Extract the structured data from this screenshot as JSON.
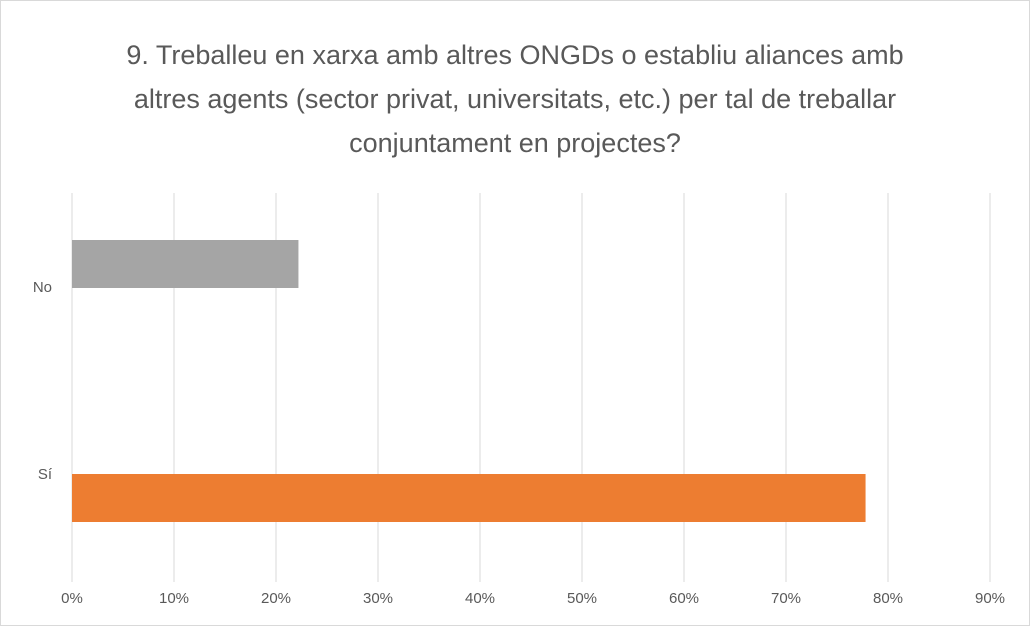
{
  "chart_data": {
    "type": "barh",
    "title": "9. Treballeu en xarxa amb altres ONGDs o establiu aliances amb altres agents (sector privat, universitats, etc.) per tal de treballar conjuntament en projectes?",
    "categories": [
      "No",
      "Sí"
    ],
    "values": [
      22.2,
      77.8
    ],
    "colors": [
      "#a5a5a5",
      "#ed7d31"
    ],
    "xlim": [
      0,
      90
    ],
    "xticks": [
      {
        "value": 0,
        "label": "0%"
      },
      {
        "value": 10,
        "label": "10%"
      },
      {
        "value": 20,
        "label": "20%"
      },
      {
        "value": 30,
        "label": "30%"
      },
      {
        "value": 40,
        "label": "40%"
      },
      {
        "value": 50,
        "label": "50%"
      },
      {
        "value": 60,
        "label": "60%"
      },
      {
        "value": 70,
        "label": "70%"
      },
      {
        "value": 80,
        "label": "80%"
      },
      {
        "value": 90,
        "label": "90%"
      }
    ],
    "grid": true
  }
}
